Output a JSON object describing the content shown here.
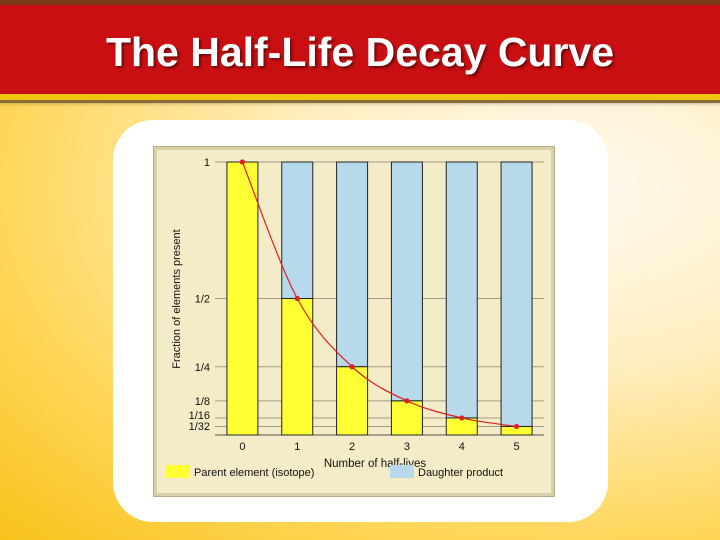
{
  "slide": {
    "title": "The Half-Life Decay Curve"
  },
  "colors": {
    "parent": "#ffff33",
    "daughter": "#b7d9ec",
    "curve": "#e02020",
    "title_bg": "#c90f12"
  },
  "chart_data": {
    "type": "bar",
    "categories": [
      "0",
      "1",
      "2",
      "3",
      "4",
      "5"
    ],
    "series": [
      {
        "name": "Parent element (isotope)",
        "values": [
          1,
          0.5,
          0.25,
          0.125,
          0.0625,
          0.03125
        ]
      },
      {
        "name": "Daughter product",
        "values": [
          0,
          0.5,
          0.75,
          0.875,
          0.9375,
          0.96875
        ]
      }
    ],
    "curve": {
      "x": [
        0,
        1,
        2,
        3,
        4,
        5
      ],
      "y": [
        1,
        0.5,
        0.25,
        0.125,
        0.0625,
        0.03125
      ]
    },
    "xlabel": "Number of half-lives",
    "ylabel": "Fraction of elements present",
    "ylim": [
      0,
      1
    ],
    "yticks": [
      {
        "value": 1,
        "label": "1"
      },
      {
        "value": 0.5,
        "label": "1/2"
      },
      {
        "value": 0.25,
        "label": "1/4"
      },
      {
        "value": 0.125,
        "label": "1/8"
      },
      {
        "value": 0.0625,
        "label": "1/16"
      },
      {
        "value": 0.03125,
        "label": "1/32"
      }
    ],
    "legend": [
      {
        "label": "Parent element (isotope)",
        "color_key": "parent"
      },
      {
        "label": "Daughter product",
        "color_key": "daughter"
      }
    ]
  }
}
